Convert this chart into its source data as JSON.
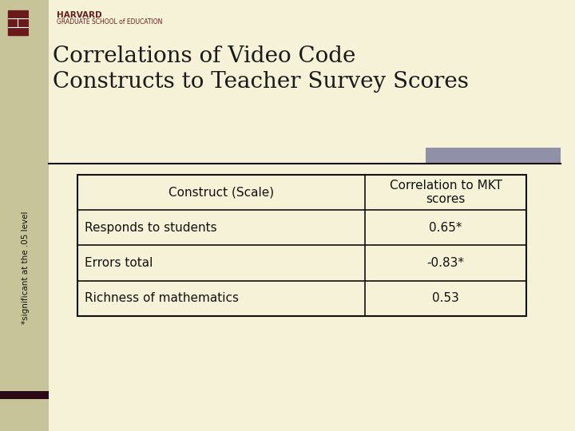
{
  "title_line1": "Correlations of Video Code",
  "title_line2": "Constructs to Teacher Survey Scores",
  "title_fontsize": 20,
  "title_color": "#1a1a1a",
  "background_color": "#f5f2d8",
  "header_col1": "Construct (Scale)",
  "header_col2": "Correlation to MKT\nscores",
  "rows": [
    [
      "Responds to students",
      "0.65*"
    ],
    [
      "Errors total",
      "-0.83*"
    ],
    [
      "Richness of mathematics",
      "0.53"
    ]
  ],
  "footnote": "*significant at the .05 level",
  "table_border_color": "#111111",
  "harvard_name": "HARVARD",
  "harvard_sub": "GRADUATE SCHOOL of EDUCATION",
  "harvard_color": "#6b1a1a",
  "sidebar_color": "#c8c49a",
  "accent_bar_color": "#9090a8",
  "dark_bar_color": "#2a0a14",
  "divider_color": "#1a0a0e",
  "font_color": "#111111",
  "table_font_size": 11,
  "header_font_size": 11
}
